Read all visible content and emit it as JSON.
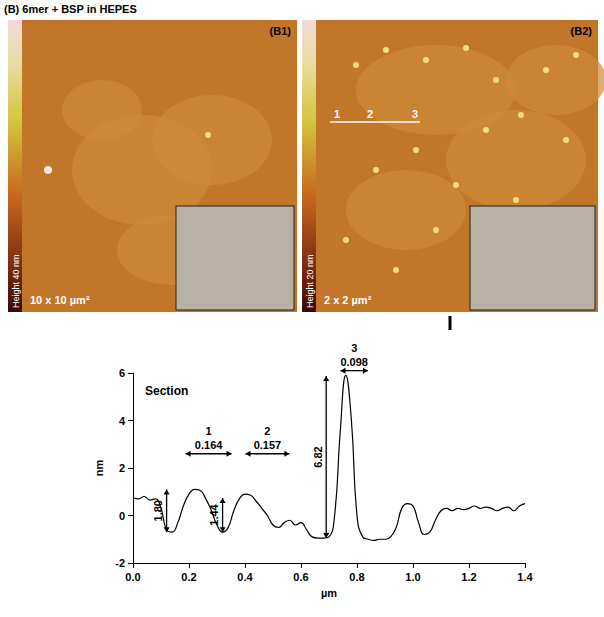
{
  "figure": {
    "title": "(B) 6mer + BSP in HEPES",
    "panels": [
      {
        "label": "(B1)",
        "colorbar_label": "Height 40 nm",
        "scan_size": "10 x 10 µm²"
      },
      {
        "label": "(B2)",
        "colorbar_label": "Height 20 nm",
        "scan_size": "2 x 2 µm²",
        "section_marks": [
          "1",
          "2",
          "3"
        ]
      }
    ]
  },
  "chart_data": {
    "type": "line",
    "title": "Section",
    "xlabel": "µm",
    "ylabel": "nm",
    "color": "#000000",
    "x": [
      0.0,
      0.02,
      0.04,
      0.06,
      0.08,
      0.1,
      0.12,
      0.14,
      0.16,
      0.18,
      0.2,
      0.22,
      0.24,
      0.26,
      0.28,
      0.3,
      0.32,
      0.34,
      0.36,
      0.38,
      0.4,
      0.42,
      0.44,
      0.46,
      0.48,
      0.5,
      0.52,
      0.54,
      0.56,
      0.58,
      0.6,
      0.62,
      0.64,
      0.66,
      0.68,
      0.7,
      0.72,
      0.74,
      0.76,
      0.78,
      0.8,
      0.82,
      0.84,
      0.86,
      0.88,
      0.9,
      0.92,
      0.94,
      0.96,
      0.98,
      1.0,
      1.02,
      1.04,
      1.06,
      1.08,
      1.1,
      1.12,
      1.14,
      1.16,
      1.18,
      1.2,
      1.22,
      1.24,
      1.26,
      1.28,
      1.3,
      1.32,
      1.34,
      1.36,
      1.38,
      1.4
    ],
    "values": [
      0.75,
      0.7,
      0.8,
      0.65,
      0.7,
      0.3,
      -0.6,
      -0.7,
      -0.3,
      0.4,
      0.9,
      1.1,
      1.05,
      0.7,
      0.2,
      -0.4,
      -0.7,
      -0.5,
      0.2,
      0.7,
      0.9,
      0.85,
      0.6,
      0.3,
      0.0,
      -0.4,
      -0.5,
      -0.3,
      -0.2,
      -0.4,
      -0.3,
      -0.6,
      -0.9,
      -0.95,
      -0.95,
      -0.9,
      0.0,
      3.5,
      5.9,
      4.0,
      0.0,
      -0.9,
      -1.0,
      -1.05,
      -1.0,
      -1.0,
      -0.9,
      -0.5,
      0.3,
      0.5,
      0.4,
      -0.3,
      -0.8,
      -0.7,
      -0.2,
      0.2,
      0.3,
      0.2,
      0.3,
      0.25,
      0.3,
      0.4,
      0.3,
      0.35,
      0.3,
      0.2,
      0.3,
      0.35,
      0.2,
      0.4,
      0.5
    ],
    "xlim": [
      0,
      1.4
    ],
    "xticks": [
      {
        "value": 0,
        "label": "0.0"
      },
      0.2,
      0.4,
      0.6,
      0.8,
      {
        "value": 1,
        "label": "1.0"
      },
      1.2,
      1.4
    ],
    "ylim": [
      -2,
      6
    ],
    "yticks": [
      -2,
      0,
      2,
      4,
      6
    ],
    "grid": false,
    "annotations": [
      {
        "label": "1",
        "x": 0.27,
        "y": 2.6,
        "width": 0.164,
        "height": {
          "value": 1.8,
          "label": "1.80"
        },
        "height_x": 0.12,
        "height_base": -0.7
      },
      {
        "label": "2",
        "x": 0.48,
        "y": 2.6,
        "width": 0.157,
        "height": {
          "value": 1.44,
          "label": "1.44"
        },
        "height_x": 0.32,
        "height_base": -0.7
      },
      {
        "label": "3",
        "x": 0.79,
        "y": 6.1,
        "width": 0.098,
        "height": {
          "value": 6.82,
          "label": "6.82"
        },
        "height_x": 0.69,
        "height_base": -0.95
      }
    ]
  }
}
